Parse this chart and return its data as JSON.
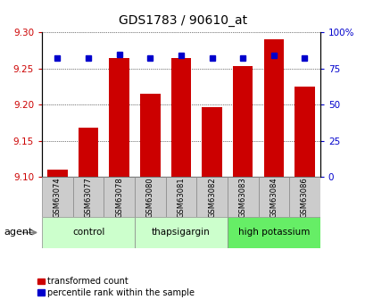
{
  "title": "GDS1783 / 90610_at",
  "categories": [
    "GSM63074",
    "GSM63077",
    "GSM63078",
    "GSM63080",
    "GSM63081",
    "GSM63082",
    "GSM63083",
    "GSM63084",
    "GSM63086"
  ],
  "red_values": [
    9.11,
    9.168,
    9.265,
    9.215,
    9.265,
    9.197,
    9.253,
    9.291,
    9.225
  ],
  "blue_values": [
    82,
    82,
    85,
    82,
    84,
    82,
    82,
    84,
    82
  ],
  "ymin": 9.1,
  "ymax": 9.3,
  "yticks": [
    9.1,
    9.15,
    9.2,
    9.25,
    9.3
  ],
  "right_yticks": [
    0,
    25,
    50,
    75,
    100
  ],
  "red_color": "#cc0000",
  "blue_color": "#0000cc",
  "bar_width": 0.65,
  "group_spans": [
    {
      "start": 0,
      "end": 2,
      "label": "control",
      "color": "#ccffcc"
    },
    {
      "start": 3,
      "end": 5,
      "label": "thapsigargin",
      "color": "#ccffcc"
    },
    {
      "start": 6,
      "end": 8,
      "label": "high potassium",
      "color": "#66ee66"
    }
  ],
  "agent_label": "agent",
  "legend_red": "transformed count",
  "legend_blue": "percentile rank within the sample",
  "tick_label_color_left": "#cc0000",
  "tick_label_color_right": "#0000cc",
  "sample_box_color": "#cccccc",
  "sample_box_edge": "#888888"
}
